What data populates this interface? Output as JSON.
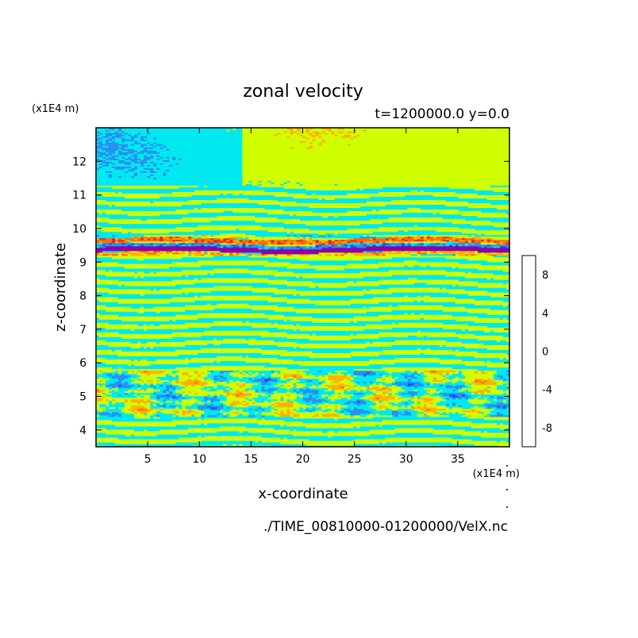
{
  "chart_data": {
    "type": "heatmap",
    "title": "zonal velocity",
    "subtitle": "t=1200000.0 y=0.0",
    "xlabel": "x-coordinate",
    "ylabel": "z-coordinate",
    "x_unit": "(x1E4 m)",
    "y_unit": "(x1E4 m)",
    "x_ticks": [
      5,
      10,
      15,
      20,
      25,
      30,
      35
    ],
    "y_ticks": [
      4,
      5,
      6,
      7,
      8,
      9,
      10,
      11,
      12
    ],
    "xlim": [
      0,
      40
    ],
    "ylim": [
      3.5,
      13
    ],
    "source_file": "./TIME_00810000-01200000/VelX.nc",
    "colorbar": {
      "levels": [
        -10,
        -8,
        -6,
        -4,
        -2,
        0,
        2,
        4,
        6,
        8,
        10
      ],
      "tick_labels": [
        "-8",
        "-4",
        "0",
        "4",
        "8"
      ],
      "tick_values": [
        -8,
        -4,
        0,
        4,
        8
      ],
      "colors": [
        "#8f00a8",
        "#1010c8",
        "#1e4ff0",
        "#2891f0",
        "#00e8f0",
        "#cfff00",
        "#ffb000",
        "#ff6a00",
        "#f02020",
        "#f8a8b0"
      ]
    },
    "bands": [
      {
        "z_range": [
          11.3,
          13.0
        ],
        "pattern": "mixed cyan (-2..0) background with large yellow-green (0..2) patches"
      },
      {
        "z_range": [
          9.8,
          11.3
        ],
        "pattern": "alternating thin cyan / yellow-green layers"
      },
      {
        "z_range": [
          9.2,
          9.8
        ],
        "pattern": "strong shear layer: red/orange (+4..+8) above dark blue (-8..-10) jet near z=9.35"
      },
      {
        "z_range": [
          5.8,
          9.2
        ],
        "pattern": "fine horizontal layering of cyan and yellow-green"
      },
      {
        "z_range": [
          4.4,
          5.8
        ],
        "pattern": "turbulent patches with blue (-4) and orange (+4) spots"
      },
      {
        "z_range": [
          3.5,
          4.4
        ],
        "pattern": "streaky cyan / yellow-green structures"
      }
    ]
  }
}
